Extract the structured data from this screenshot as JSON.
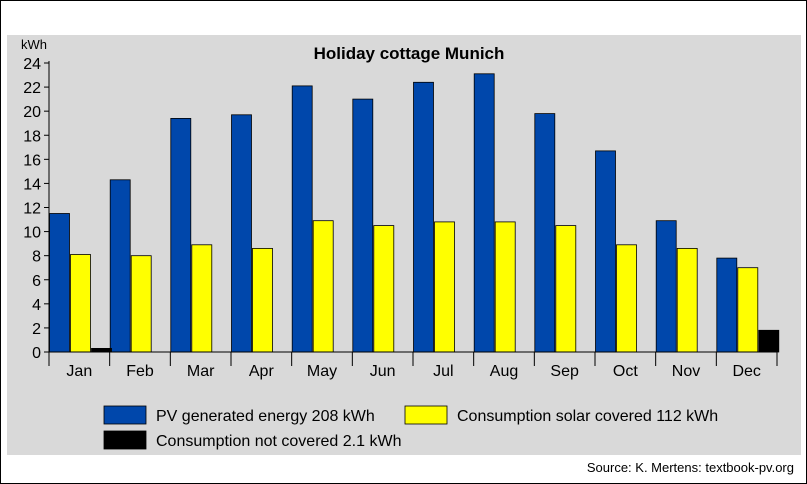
{
  "chart_data": {
    "type": "bar",
    "title": "Holiday cottage Munich",
    "ylabel": "kWh",
    "xlabel": "",
    "ylim": [
      0,
      24
    ],
    "yticks": [
      0,
      2,
      4,
      6,
      8,
      10,
      12,
      14,
      16,
      18,
      20,
      22,
      24
    ],
    "grid": false,
    "legend_position": "bottom",
    "categories": [
      "Jan",
      "Feb",
      "Mar",
      "Apr",
      "May",
      "Jun",
      "Jul",
      "Aug",
      "Sep",
      "Oct",
      "Nov",
      "Dec"
    ],
    "series": [
      {
        "name": "PV generated energy 208 kWh",
        "color": "#0047ab",
        "values": [
          11.5,
          14.3,
          19.4,
          19.7,
          22.1,
          21.0,
          22.4,
          23.1,
          19.8,
          16.7,
          10.9,
          7.8
        ]
      },
      {
        "name": "Consumption solar covered 112 kWh",
        "color": "#ffff00",
        "values": [
          8.1,
          8.0,
          8.9,
          8.6,
          10.9,
          10.5,
          10.8,
          10.8,
          10.5,
          8.9,
          8.6,
          7.0
        ]
      },
      {
        "name": "Consumption not covered 2.1 kWh",
        "color": "#000000",
        "values": [
          0.3,
          0,
          0,
          0,
          0,
          0,
          0,
          0,
          0,
          0,
          0,
          1.8
        ]
      }
    ]
  },
  "source": "Source: K. Mertens: textbook-pv.org"
}
